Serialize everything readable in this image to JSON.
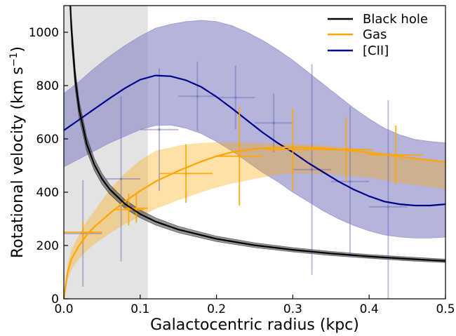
{
  "chart_data": {
    "type": "line",
    "xlabel": "Galactocentric radius (kpc)",
    "ylabel_main": "Rotational velocity (km s",
    "ylabel_sup": "−1",
    "ylabel_close": ")",
    "xlim": [
      0,
      0.5
    ],
    "ylim": [
      0,
      1100
    ],
    "xticks": [
      0.0,
      0.1,
      0.2,
      0.3,
      0.4,
      0.5
    ],
    "xtick_labels": [
      "0.0",
      "0.1",
      "0.2",
      "0.3",
      "0.4",
      "0.5"
    ],
    "yticks": [
      0,
      200,
      400,
      600,
      800,
      1000
    ],
    "ytick_labels": [
      "0",
      "200",
      "400",
      "600",
      "800",
      "1000"
    ],
    "shaded_region": {
      "x0": 0.0,
      "x1": 0.11,
      "color": "#e3e3e3"
    },
    "legend": {
      "position": "top-right",
      "entries": [
        {
          "label": "Black hole",
          "color": "#000000"
        },
        {
          "label": "Gas",
          "color": "#ffa500"
        },
        {
          "label": "[CII]",
          "color": "#00008b"
        }
      ]
    },
    "series": [
      {
        "name": "Black hole",
        "color": "#000000",
        "band_color": "#404040",
        "x": [
          0.01,
          0.015,
          0.02,
          0.03,
          0.04,
          0.05,
          0.06,
          0.08,
          0.1,
          0.12,
          0.15,
          0.2,
          0.25,
          0.3,
          0.35,
          0.4,
          0.45,
          0.5
        ],
        "y": [
          1006,
          822,
          712,
          581,
          503,
          450,
          411,
          356,
          318,
          290,
          260,
          225,
          201,
          184,
          170,
          159,
          150,
          142
        ],
        "lower": [
          961,
          785,
          680,
          555,
          481,
          430,
          393,
          340,
          304,
          277,
          248,
          215,
          192,
          176,
          162,
          152,
          143,
          136
        ],
        "upper": [
          1052,
          859,
          744,
          607,
          526,
          470,
          429,
          372,
          333,
          304,
          272,
          235,
          210,
          192,
          178,
          166,
          157,
          149
        ]
      },
      {
        "name": "Gas",
        "color": "#ffa500",
        "band_color": "#ffa500",
        "x": [
          0.0,
          0.005,
          0.01,
          0.02,
          0.03,
          0.04,
          0.05,
          0.06,
          0.08,
          0.1,
          0.12,
          0.15,
          0.18,
          0.2,
          0.22,
          0.25,
          0.28,
          0.3,
          0.33,
          0.35,
          0.38,
          0.4,
          0.43,
          0.45,
          0.48,
          0.5
        ],
        "y": [
          0,
          100,
          150,
          200,
          240,
          270,
          295,
          320,
          365,
          405,
          440,
          480,
          515,
          535,
          550,
          563,
          568,
          569,
          566,
          562,
          555,
          548,
          538,
          530,
          520,
          513
        ],
        "lower": [
          0,
          70,
          110,
          150,
          180,
          205,
          225,
          245,
          280,
          310,
          337,
          370,
          400,
          418,
          432,
          450,
          465,
          470,
          470,
          468,
          460,
          455,
          440,
          430,
          420,
          410
        ],
        "upper": [
          0,
          130,
          185,
          240,
          290,
          330,
          370,
          410,
          470,
          520,
          555,
          575,
          585,
          588,
          588,
          585,
          582,
          580,
          577,
          573,
          565,
          555,
          545,
          535,
          520,
          510
        ],
        "points": [
          {
            "x": 0.025,
            "y": 250,
            "xerr": 0.025,
            "yerr": 40
          },
          {
            "x": 0.085,
            "y": 335,
            "xerr": 0.02,
            "yerr": 60
          },
          {
            "x": 0.095,
            "y": 340,
            "xerr": 0.015,
            "yerr": 55
          },
          {
            "x": 0.16,
            "y": 470,
            "xerr": 0.035,
            "yerr": 110
          },
          {
            "x": 0.23,
            "y": 535,
            "xerr": 0.03,
            "yerr": 185
          },
          {
            "x": 0.3,
            "y": 560,
            "xerr": 0.035,
            "yerr": 155
          },
          {
            "x": 0.37,
            "y": 560,
            "xerr": 0.035,
            "yerr": 120
          },
          {
            "x": 0.435,
            "y": 540,
            "xerr": 0.035,
            "yerr": 110
          }
        ]
      },
      {
        "name": "[CII]",
        "color": "#00008b",
        "band_color": "#8c8cc9",
        "x": [
          0.0,
          0.02,
          0.04,
          0.06,
          0.08,
          0.1,
          0.12,
          0.14,
          0.16,
          0.18,
          0.2,
          0.22,
          0.24,
          0.26,
          0.28,
          0.3,
          0.32,
          0.34,
          0.36,
          0.38,
          0.4,
          0.42,
          0.44,
          0.46,
          0.48,
          0.5
        ],
        "y": [
          632,
          672,
          712,
          752,
          790,
          822,
          838,
          835,
          820,
          795,
          758,
          715,
          670,
          625,
          585,
          550,
          510,
          475,
          440,
          410,
          385,
          365,
          355,
          350,
          350,
          355
        ],
        "lower": [
          495,
          525,
          555,
          585,
          610,
          635,
          650,
          652,
          640,
          620,
          590,
          555,
          515,
          475,
          440,
          400,
          365,
          330,
          300,
          275,
          255,
          240,
          232,
          228,
          228,
          232
        ],
        "upper": [
          770,
          815,
          865,
          910,
          950,
          985,
          1015,
          1030,
          1040,
          1045,
          1040,
          1025,
          1000,
          970,
          935,
          895,
          850,
          805,
          760,
          715,
          675,
          640,
          615,
          598,
          590,
          585
        ],
        "points": [
          {
            "x": 0.025,
            "y": 245,
            "xerr": 0.025,
            "yerr": 200
          },
          {
            "x": 0.075,
            "y": 450,
            "xerr": 0.025,
            "yerr": 310
          },
          {
            "x": 0.125,
            "y": 635,
            "xerr": 0.025,
            "yerr": 230
          },
          {
            "x": 0.175,
            "y": 760,
            "xerr": 0.025,
            "yerr": 130
          },
          {
            "x": 0.225,
            "y": 755,
            "xerr": 0.025,
            "yerr": 120
          },
          {
            "x": 0.275,
            "y": 660,
            "xerr": 0.025,
            "yerr": 110
          },
          {
            "x": 0.325,
            "y": 485,
            "xerr": 0.025,
            "yerr": 395
          },
          {
            "x": 0.375,
            "y": 440,
            "xerr": 0.025,
            "yerr": 280
          },
          {
            "x": 0.425,
            "y": 345,
            "xerr": 0.025,
            "yerr": 400
          }
        ]
      }
    ]
  }
}
